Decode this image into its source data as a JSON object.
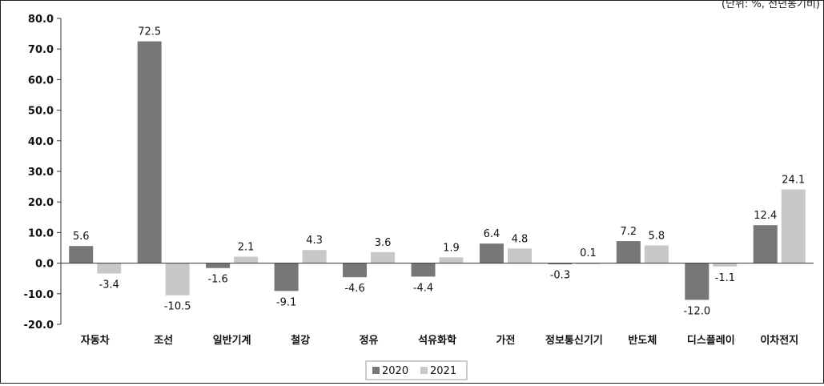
{
  "unit_note": "(단위: %, 전년동기비)",
  "chart_data": {
    "type": "bar",
    "categories": [
      "자동차",
      "조선",
      "일반기계",
      "철강",
      "정유",
      "석유화학",
      "가전",
      "정보통신기기",
      "반도체",
      "디스플레이",
      "이차전지"
    ],
    "series": [
      {
        "name": "2020",
        "values": [
          5.6,
          72.5,
          -1.6,
          -9.1,
          -4.6,
          -4.4,
          6.4,
          -0.3,
          7.2,
          -12.0,
          12.4
        ],
        "labels": [
          "5.6",
          "72.5",
          "-1.6",
          "-9.1",
          "-4.6",
          "-4.4",
          "6.4",
          "-0.3",
          "7.2",
          "-12.0",
          "12.4"
        ],
        "color": "#777777"
      },
      {
        "name": "2021",
        "values": [
          -3.4,
          -10.5,
          2.1,
          4.3,
          3.6,
          1.9,
          4.8,
          0.1,
          5.8,
          -1.1,
          24.1
        ],
        "labels": [
          "-3.4",
          "-10.5",
          "2.1",
          "4.3",
          "3.6",
          "1.9",
          "4.8",
          "0.1",
          "5.8",
          "-1.1",
          "24.1"
        ],
        "color": "#c8c8c8"
      }
    ],
    "yticks": [
      "80.0",
      "70.0",
      "60.0",
      "50.0",
      "40.0",
      "30.0",
      "20.0",
      "10.0",
      "0.0",
      "-10.0",
      "-20.0"
    ],
    "ylim": [
      -20,
      80
    ],
    "grid": false,
    "legend_position": "bottom-center"
  }
}
